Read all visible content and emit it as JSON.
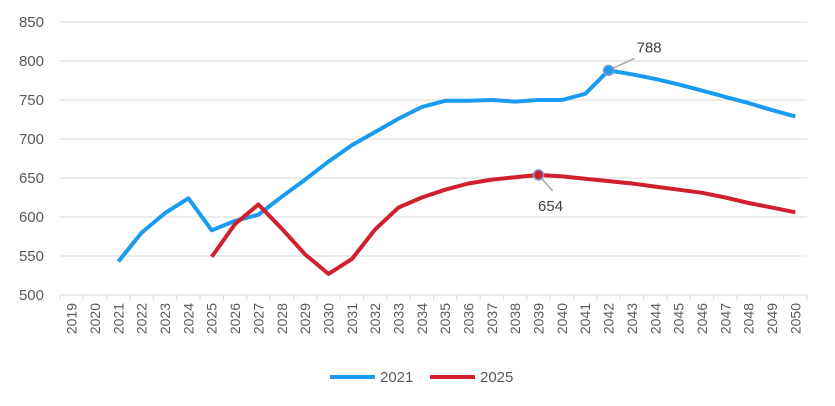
{
  "chart_data": {
    "type": "line",
    "title": "",
    "xlabel": "",
    "ylabel": "",
    "x": [
      "2019",
      "2020",
      "2021",
      "2022",
      "2023",
      "2024",
      "2025",
      "2026",
      "2027",
      "2028",
      "2029",
      "2030",
      "2031",
      "2032",
      "2033",
      "2034",
      "2035",
      "2036",
      "2037",
      "2038",
      "2039",
      "2040",
      "2041",
      "2042",
      "2043",
      "2044",
      "2045",
      "2046",
      "2047",
      "2048",
      "2049",
      "2050"
    ],
    "ylim": [
      500,
      850
    ],
    "yticks": [
      500,
      550,
      600,
      650,
      700,
      750,
      800,
      850
    ],
    "grid": true,
    "legend_position": "bottom",
    "series": [
      {
        "name": "2021",
        "color": "#1a9bf0",
        "values": [
          null,
          null,
          543,
          580,
          605,
          624,
          583,
          595,
          603,
          626,
          648,
          671,
          692,
          709,
          726,
          741,
          749,
          749,
          750,
          748,
          750,
          750,
          758,
          788,
          783,
          777,
          770,
          762,
          754,
          746,
          737,
          729
        ]
      },
      {
        "name": "2025",
        "color": "#d0202e",
        "values": [
          null,
          null,
          null,
          null,
          null,
          null,
          549,
          591,
          616,
          585,
          552,
          527,
          546,
          584,
          612,
          625,
          635,
          643,
          648,
          651,
          654,
          652,
          649,
          646,
          643,
          639,
          635,
          631,
          625,
          618,
          612,
          606
        ]
      }
    ],
    "annotations": [
      {
        "series": "2021",
        "x": "2042",
        "label": "788"
      },
      {
        "series": "2025",
        "x": "2039",
        "label": "654"
      }
    ]
  }
}
